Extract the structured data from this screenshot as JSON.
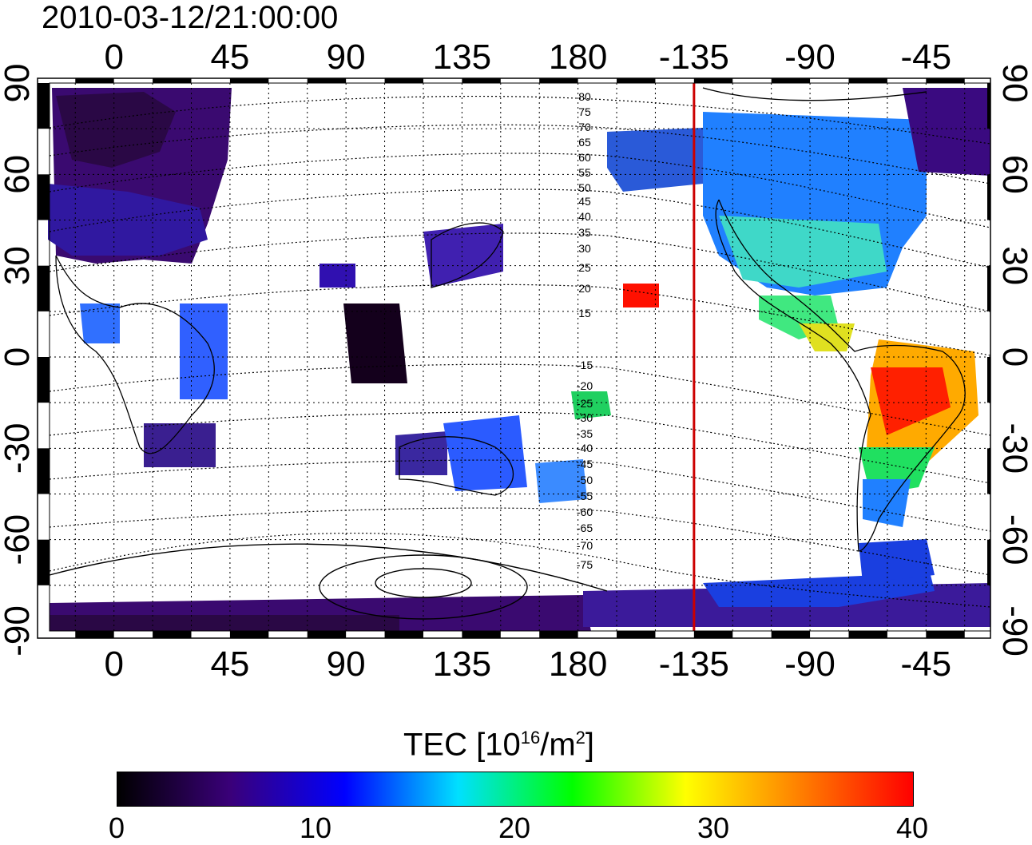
{
  "title": "2010-03-12/21:00:00",
  "map": {
    "lon_tick_labels": [
      "0",
      "45",
      "90",
      "135",
      "180",
      "-135",
      "-90",
      "-45"
    ],
    "lon_tick_values": [
      0,
      45,
      90,
      135,
      180,
      225,
      270,
      315
    ],
    "lat_tick_labels": [
      "90",
      "60",
      "30",
      "0",
      "-30",
      "-60",
      "-90"
    ],
    "lat_tick_values": [
      90,
      60,
      30,
      0,
      -30,
      -60,
      -90
    ],
    "lon_range": [
      -25,
      340
    ],
    "lat_range": [
      -90,
      90
    ],
    "grid": "dotted",
    "terminator_longitude": -135,
    "terminator_color": "#cc0000",
    "magnetic_latitude_labels": [
      "80",
      "75",
      "70",
      "65",
      "60",
      "55",
      "50",
      "45",
      "40",
      "35",
      "30",
      "25",
      "20",
      "15",
      "-15",
      "-20",
      "-25",
      "-30",
      "-35",
      "-40",
      "-45",
      "-50",
      "-55",
      "-60",
      "-65",
      "-70",
      "-75"
    ]
  },
  "colorbar": {
    "title_main": "TEC  [10",
    "title_exp1": "16",
    "title_mid": "/m",
    "title_exp2": "2",
    "title_end": "]",
    "min": 0,
    "max": 40,
    "tick_labels": [
      "0",
      "10",
      "20",
      "30",
      "40"
    ],
    "colors": [
      "#000000",
      "#3a007a",
      "#0000ff",
      "#00e0ff",
      "#00ff00",
      "#ffff00",
      "#ff8000",
      "#ff0000"
    ]
  }
}
